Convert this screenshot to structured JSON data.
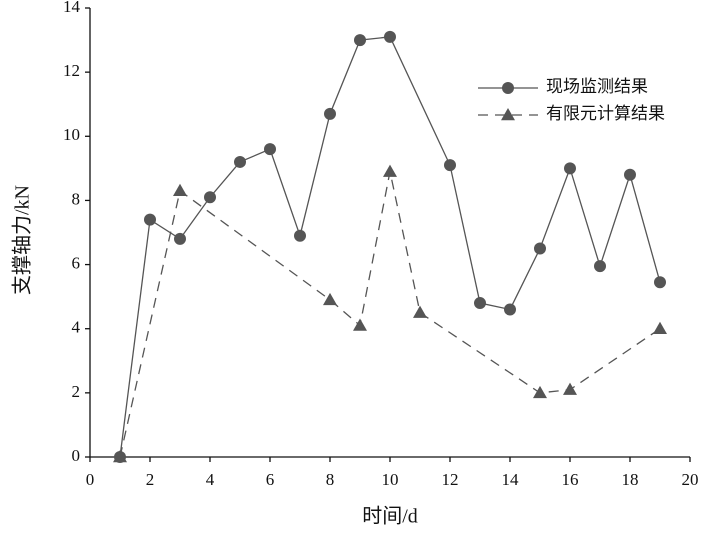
{
  "chart_data": {
    "type": "line",
    "x_label": "时间/d",
    "y_label": "支撑轴力/kN",
    "xlim": [
      0,
      20
    ],
    "xticks": [
      0,
      2,
      4,
      6,
      8,
      10,
      12,
      14,
      16,
      18,
      20
    ],
    "ylim": [
      0,
      14
    ],
    "yticks": [
      0,
      2,
      4,
      6,
      8,
      10,
      12,
      14
    ],
    "grid": false,
    "legend": "upper right",
    "series": [
      {
        "name": "现场监测结果",
        "color": "#555555",
        "marker": "circle",
        "line_style": "solid",
        "x": [
          1,
          2,
          3,
          4,
          5,
          6,
          7,
          8,
          9,
          10,
          12,
          13,
          14,
          15,
          16,
          17,
          18,
          19
        ],
        "values": [
          0,
          7.4,
          6.8,
          8.1,
          9.2,
          9.6,
          6.9,
          10.7,
          13.0,
          13.1,
          9.1,
          4.8,
          4.6,
          6.5,
          9.0,
          5.95,
          8.8,
          5.45
        ]
      },
      {
        "name": "有限元计算结果",
        "color": "#555555",
        "marker": "triangle",
        "line_style": "dashed",
        "x": [
          1,
          3,
          8,
          9,
          10,
          11,
          15,
          16,
          19
        ],
        "values": [
          0,
          8.3,
          4.9,
          4.1,
          8.9,
          4.5,
          2.0,
          2.1,
          4.0
        ]
      }
    ]
  }
}
